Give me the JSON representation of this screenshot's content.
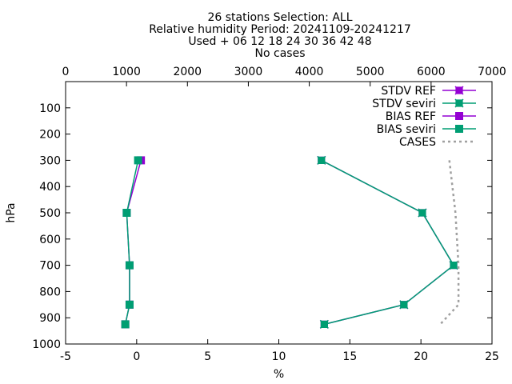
{
  "chart_data": {
    "type": "line",
    "title_lines": [
      "26 stations Selection: ALL",
      "Relative humidity  Period: 20241109-20241217",
      "Used  + 06 12 18 24 30 36 42 48",
      "No cases"
    ],
    "xlabel": "%",
    "ylabel": "hPa",
    "xlim": [
      -5,
      25
    ],
    "ylim": [
      1000,
      0
    ],
    "x2lim": [
      0,
      7000
    ],
    "x_ticks": [
      -5,
      0,
      5,
      10,
      15,
      20,
      25
    ],
    "x2_ticks": [
      0,
      1000,
      2000,
      3000,
      4000,
      5000,
      6000,
      7000
    ],
    "y_ticks": [
      100,
      200,
      300,
      400,
      500,
      600,
      700,
      800,
      900,
      1000
    ],
    "legend_position": "top-right",
    "grid": false,
    "series": [
      {
        "name": "STDV REF",
        "color": "#9400d3",
        "marker": "x-box",
        "points": [
          [
            13.0,
            300
          ],
          [
            20.1,
            500
          ],
          [
            22.3,
            700
          ],
          [
            18.8,
            850
          ],
          [
            13.2,
            925
          ]
        ]
      },
      {
        "name": "STDV seviri",
        "color": "#009e73",
        "marker": "x-box",
        "points": [
          [
            13.0,
            300
          ],
          [
            20.1,
            500
          ],
          [
            22.3,
            700
          ],
          [
            18.8,
            850
          ],
          [
            13.2,
            925
          ]
        ]
      },
      {
        "name": "BIAS REF",
        "color": "#9400d3",
        "marker": "square",
        "points": [
          [
            0.3,
            300
          ],
          [
            -0.7,
            500
          ],
          [
            -0.5,
            700
          ],
          [
            -0.5,
            850
          ],
          [
            -0.8,
            925
          ]
        ]
      },
      {
        "name": "BIAS seviri",
        "color": "#009e73",
        "marker": "square",
        "points": [
          [
            0.1,
            300
          ],
          [
            -0.7,
            500
          ],
          [
            -0.5,
            700
          ],
          [
            -0.5,
            850
          ],
          [
            -0.8,
            925
          ]
        ]
      },
      {
        "name": "CASES",
        "color": "#a0a0a0",
        "dashed": true,
        "axis": "x2",
        "points": [
          [
            6300,
            300
          ],
          [
            6400,
            500
          ],
          [
            6450,
            700
          ],
          [
            6450,
            850
          ],
          [
            6150,
            925
          ]
        ]
      }
    ]
  }
}
